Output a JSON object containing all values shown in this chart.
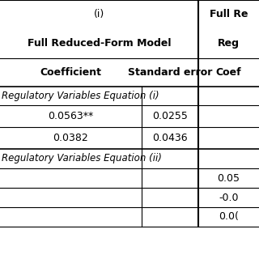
{
  "col_header_row1": [
    "(i)",
    "",
    "Full Re"
  ],
  "col_header_row2": [
    "Full Reduced-Form Model",
    "",
    "Full Re\nReg"
  ],
  "col_header_row3": [
    "Coefficient",
    "Standard error",
    "Coef"
  ],
  "section1_label": "Regulatory Variables Equation (i)",
  "section1_rows": [
    [
      "0.0563**",
      "0.0255",
      ""
    ],
    [
      "0.0382",
      "0.0436",
      ""
    ]
  ],
  "section2_label": "Regulatory Variables Equation (ii)",
  "section2_rows": [
    [
      "",
      "",
      "0.05"
    ],
    [
      "",
      "",
      "-0.0"
    ],
    [
      "",
      "",
      "0.0("
    ]
  ],
  "bg_color": "#ffffff",
  "line_color": "#000000",
  "text_color": "#000000",
  "header_bold": true,
  "section_italic": true,
  "font_size_header": 9,
  "font_size_data": 9,
  "font_size_section": 8.5
}
